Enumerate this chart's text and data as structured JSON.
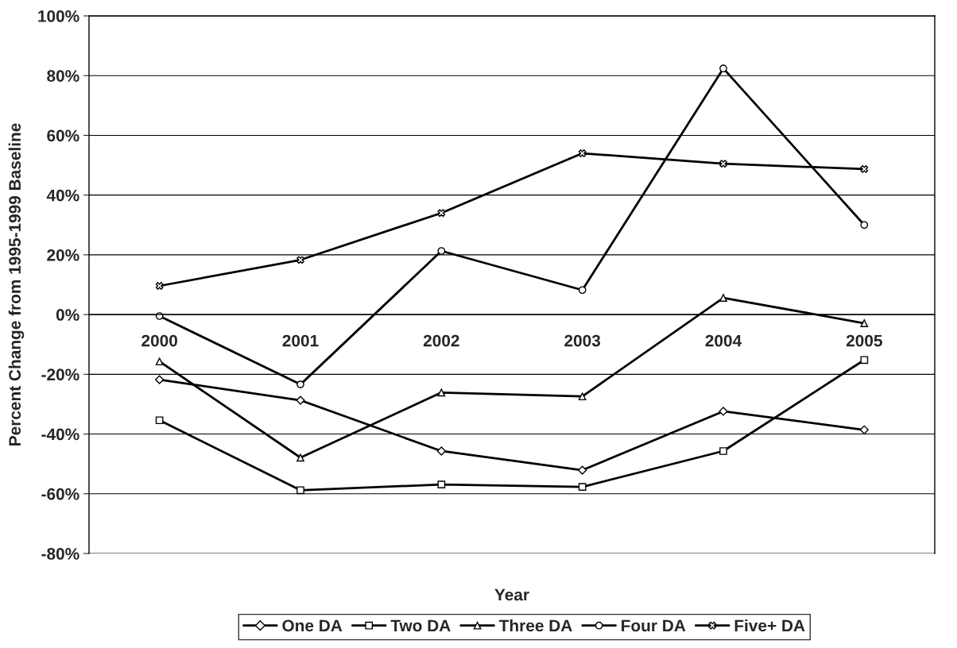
{
  "chart_data": {
    "type": "line",
    "xlabel": "Year",
    "ylabel": "Percent Change from 1995-1999 Baseline",
    "categories": [
      "2000",
      "2001",
      "2002",
      "2003",
      "2004",
      "2005"
    ],
    "series": [
      {
        "name": "One DA",
        "color": "#000000",
        "marker": "diamond",
        "values": [
          -21.8,
          -28.7,
          -45.7,
          -52.1,
          -32.4,
          -38.6
        ]
      },
      {
        "name": "Two DA",
        "color": "#000000",
        "marker": "square",
        "values": [
          -35.4,
          -58.8,
          -56.9,
          -57.7,
          -45.7,
          -15.2
        ]
      },
      {
        "name": "Three DA",
        "color": "#000000",
        "marker": "triangle",
        "values": [
          -15.7,
          -47.9,
          -26.1,
          -27.4,
          5.6,
          -2.9
        ]
      },
      {
        "name": "Four DA",
        "color": "#000000",
        "marker": "circle",
        "values": [
          -0.5,
          -23.4,
          21.3,
          8.2,
          82.4,
          30.0
        ]
      },
      {
        "name": "Five+ DA",
        "color": "#000000",
        "marker": "cross",
        "values": [
          9.6,
          18.3,
          34.0,
          54.0,
          50.5,
          48.7
        ]
      }
    ],
    "ylim": [
      -80,
      100
    ],
    "yticks": [
      {
        "value": -80,
        "label": "-80%"
      },
      {
        "value": -60,
        "label": "-60%"
      },
      {
        "value": -40,
        "label": "-40%"
      },
      {
        "value": -20,
        "label": "-20%"
      },
      {
        "value": 0,
        "label": "0%"
      },
      {
        "value": 20,
        "label": "20%"
      },
      {
        "value": 40,
        "label": "40%"
      },
      {
        "value": 60,
        "label": "60%"
      },
      {
        "value": 80,
        "label": "80%"
      },
      {
        "value": 100,
        "label": "100%"
      }
    ],
    "grid": "y",
    "legend": "bottom",
    "line_style": "solid"
  }
}
